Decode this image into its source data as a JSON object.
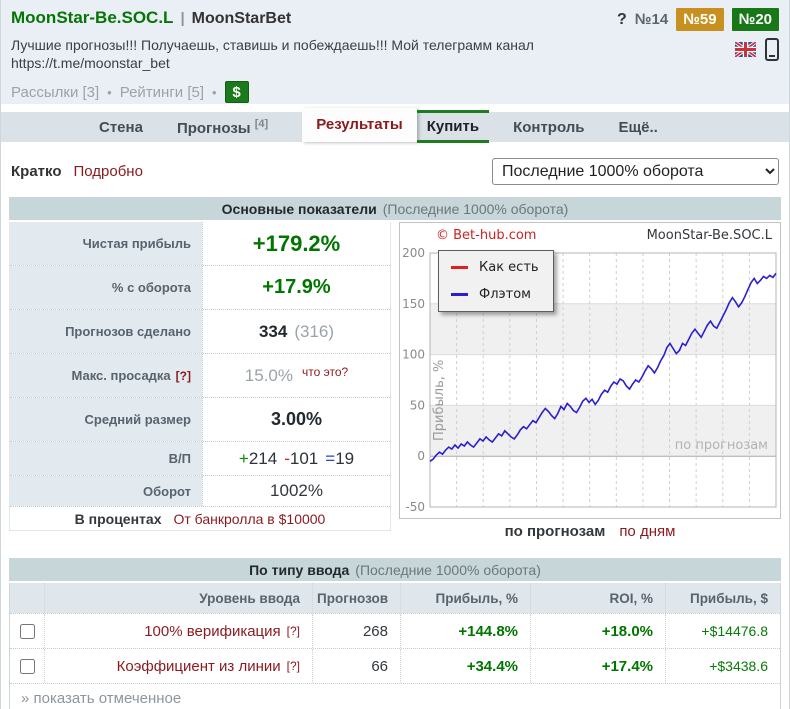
{
  "colors": {
    "accent_green": "#067506",
    "value_green": "#007500",
    "link_maroon": "#8b1a1e",
    "badge_orange": "#c8911f",
    "badge_green": "#187818",
    "line_blue": "#2a1fd0",
    "line_red": "#e02020"
  },
  "header": {
    "title": "MoonStar-Be.SOC.L",
    "separator": "|",
    "subtitle": "MoonStarBet",
    "help_icon": "?",
    "rank_plain": "№14",
    "rank_orange": "№59",
    "rank_green": "№20",
    "description": "Лучшие прогнозы!!! Получаешь, ставишь и побеждаешь!!! Мой телеграмм канал https://t.me/moonstar_bet",
    "link_mailings": "Рассылки [3]",
    "link_ratings": "Рейтинги [5]",
    "bullet": "•",
    "dollar_badge": "$"
  },
  "nav": {
    "tab_wall": "Стена",
    "tab_forecasts": "Прогнозы",
    "tab_forecasts_sup": "[4]",
    "tab_results": "Результаты",
    "tab_buy": "Купить",
    "tab_control": "Контроль",
    "tab_more": "Ещё.."
  },
  "view_toggle": {
    "brief": "Кратко",
    "detailed": "Подробно"
  },
  "period_select": {
    "value": "Последние 1000% оборота"
  },
  "main_stats": {
    "title": "Основные показатели",
    "title_suffix": "(Последние 1000% оборота)",
    "rows": [
      {
        "label": "Чистая прибыль",
        "value": "+179.2%"
      },
      {
        "label": "% с оборота",
        "value": "+17.9%"
      },
      {
        "label": "Прогнозов сделано",
        "value": "334",
        "value_secondary": "(316)"
      },
      {
        "label": "Макс. просадка",
        "help": "[?]",
        "value": "15.0%",
        "link": "что это?"
      },
      {
        "label": "Средний размер",
        "value": "3.00%"
      },
      {
        "label": "В/П",
        "win_sign": "+",
        "win": "214",
        "loss_sign": "-",
        "loss": "101",
        "draw_sign": "=",
        "draw": "19"
      },
      {
        "label": "Оборот",
        "value": "1002%"
      }
    ],
    "footer": {
      "active": "В процентах",
      "link": "От банкролла в $10000"
    }
  },
  "chart_data": {
    "type": "line",
    "copyright": "© Bet-hub.com",
    "title": "MoonStar-Be.SOC.L",
    "ylabel": "Прибыль, %",
    "xlabel": "",
    "x_type": "prediction index (по прогнозам)",
    "ylim": [
      -50,
      200
    ],
    "ytick_step": 50,
    "yticks": [
      200,
      150,
      100,
      50,
      0,
      -50
    ],
    "gray_bands": [
      [
        0,
        50
      ],
      [
        100,
        150
      ]
    ],
    "vertical_gridlines": 13,
    "grid": "dashed-vertical, solid-horizontal",
    "watermark": "по прогнозам",
    "legend_position": "top-left",
    "series": [
      {
        "name": "Как есть",
        "color": "#e02020",
        "values": []
      },
      {
        "name": "Флэтом",
        "color": "#2a1fd0",
        "values": [
          -5,
          -3,
          1,
          4,
          2,
          6,
          9,
          7,
          11,
          8,
          12,
          10,
          14,
          11,
          9,
          13,
          17,
          15,
          19,
          16,
          14,
          18,
          22,
          20,
          25,
          22,
          19,
          17,
          21,
          26,
          29,
          27,
          31,
          35,
          33,
          38,
          43,
          47,
          44,
          40,
          37,
          42,
          49,
          46,
          52,
          49,
          45,
          43,
          48,
          54,
          57,
          53,
          56,
          51,
          55,
          61,
          65,
          63,
          69,
          73,
          71,
          76,
          74,
          69,
          66,
          71,
          75,
          73,
          78,
          84,
          89,
          86,
          82,
          87,
          94,
          99,
          107,
          111,
          106,
          101,
          104,
          111,
          109,
          115,
          121,
          125,
          121,
          117,
          123,
          129,
          133,
          128,
          126,
          132,
          138,
          144,
          151,
          156,
          152,
          147,
          151,
          157,
          164,
          171,
          175,
          170,
          173,
          177,
          175,
          178,
          176,
          180
        ]
      }
    ]
  },
  "chart_footer": {
    "active": "по прогнозам",
    "link": "по дням"
  },
  "input_type_table": {
    "title": "По типу ввода",
    "title_suffix": "(Последние 1000% оборота)",
    "columns": {
      "level": "Уровень ввода",
      "count": "Прогнозов",
      "profit_pct": "Прибыль, %",
      "roi": "ROI, %",
      "profit_usd": "Прибыль, $"
    },
    "rows": [
      {
        "name": "100% верификация",
        "help": "[?]",
        "count": "268",
        "profit_pct": "+144.8%",
        "roi": "+18.0%",
        "profit_usd": "+$14476.8"
      },
      {
        "name": "Коэффициент из линии",
        "help": "[?]",
        "count": "66",
        "profit_pct": "+34.4%",
        "roi": "+17.4%",
        "profit_usd": "+$3438.6"
      }
    ],
    "footer": "» показать отмеченное"
  }
}
